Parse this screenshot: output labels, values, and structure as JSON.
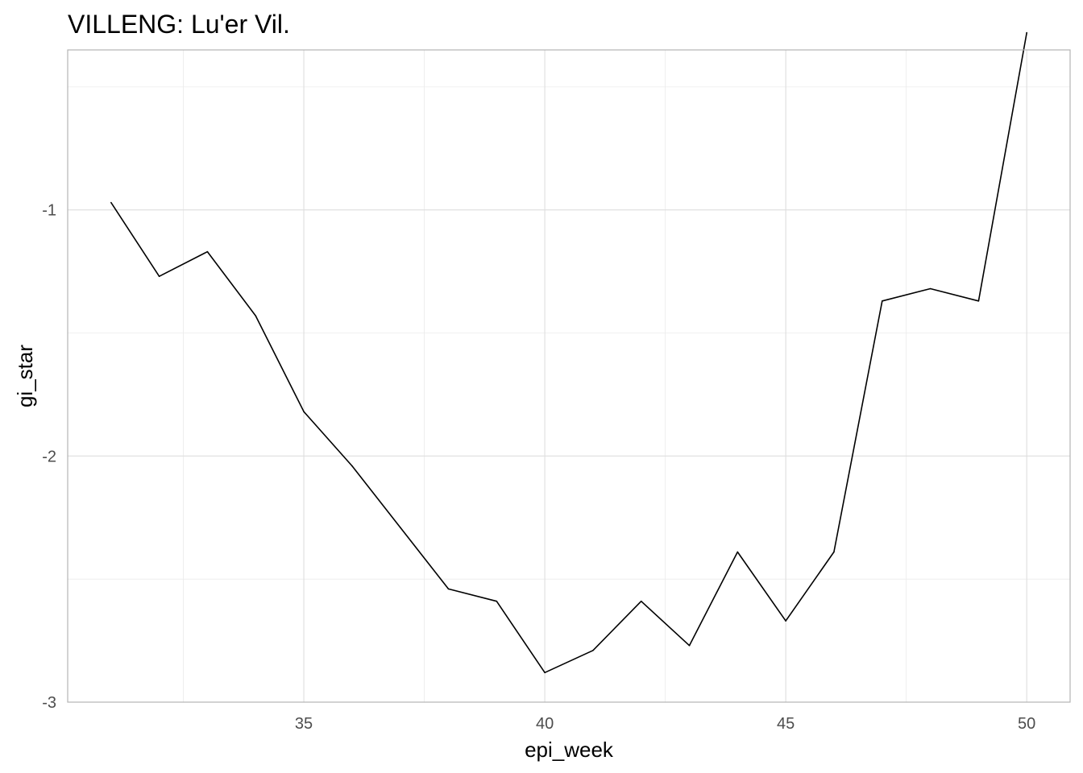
{
  "chart_data": {
    "type": "line",
    "title": "VILLENG: Lu'er Vil.",
    "xlabel": "epi_week",
    "ylabel": "gi_star",
    "xlim": [
      30.1,
      50.9
    ],
    "ylim": [
      -3.0,
      -0.35
    ],
    "x_ticks": [
      35,
      40,
      45,
      50
    ],
    "x_minor_ticks": [
      32.5,
      37.5,
      42.5,
      47.5
    ],
    "y_ticks": [
      -3,
      -2,
      -1
    ],
    "y_minor_ticks": [
      -2.5,
      -1.5,
      -0.5
    ],
    "grid": true,
    "legend": "none",
    "line_color": "#000000",
    "x": [
      31,
      32,
      33,
      34,
      35,
      36,
      37,
      38,
      39,
      40,
      41,
      42,
      43,
      44,
      45,
      46,
      47,
      48,
      49,
      50
    ],
    "y": [
      -0.97,
      -1.27,
      -1.17,
      -1.43,
      -1.82,
      -2.04,
      -2.29,
      -2.54,
      -2.59,
      -2.88,
      -2.79,
      -2.59,
      -2.77,
      -2.39,
      -2.67,
      -2.39,
      -1.37,
      -1.32,
      -1.37,
      -0.28
    ]
  }
}
